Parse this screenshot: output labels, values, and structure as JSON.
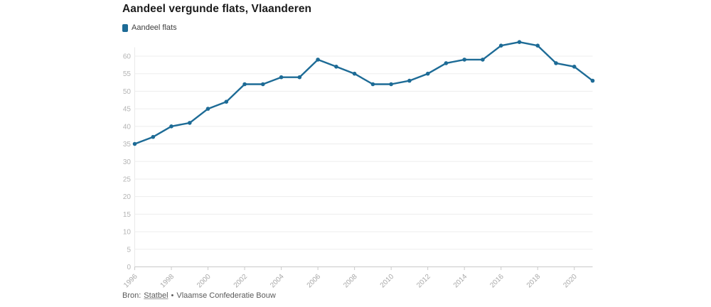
{
  "header": {
    "title": "Aandeel vergunde flats, Vlaanderen"
  },
  "legend": {
    "items": [
      {
        "label": "Aandeel flats",
        "color": "#1d6b96"
      }
    ]
  },
  "footer": {
    "source_prefix": "Bron:",
    "source_link": "Statbel",
    "source_separator": "•",
    "source_rest": "Vlaamse Confederatie Bouw"
  },
  "colors": {
    "line": "#1d6b96",
    "gridline": "#ededed",
    "baseline": "#c9c9c9",
    "axis_line": "#e9e9e9",
    "y_label": "#b4b4b4",
    "x_label": "#a9a9a9"
  },
  "chart_data": {
    "type": "line",
    "title": "Aandeel vergunde flats, Vlaanderen",
    "x": [
      1996,
      1997,
      1998,
      1999,
      2000,
      2001,
      2002,
      2003,
      2004,
      2005,
      2006,
      2007,
      2008,
      2009,
      2010,
      2011,
      2012,
      2013,
      2014,
      2015,
      2016,
      2017,
      2018,
      2019,
      2020,
      2021
    ],
    "series": [
      {
        "name": "Aandeel flats",
        "color": "#1d6b96",
        "values": [
          35,
          37,
          40,
          41,
          45,
          47,
          52,
          52,
          54,
          54,
          59,
          57,
          55,
          52,
          52,
          53,
          55,
          58,
          59,
          59,
          63,
          64,
          63,
          58,
          57,
          53
        ]
      }
    ],
    "xticks": [
      1996,
      1998,
      2000,
      2002,
      2004,
      2006,
      2008,
      2010,
      2012,
      2014,
      2016,
      2018,
      2020
    ],
    "yticks": [
      0,
      5,
      10,
      15,
      20,
      25,
      30,
      35,
      40,
      45,
      50,
      55,
      60
    ],
    "xlabel": "",
    "ylabel": "",
    "ylim": [
      0,
      65
    ],
    "grid": true,
    "legend_position": "top-left",
    "marker": "circle"
  }
}
